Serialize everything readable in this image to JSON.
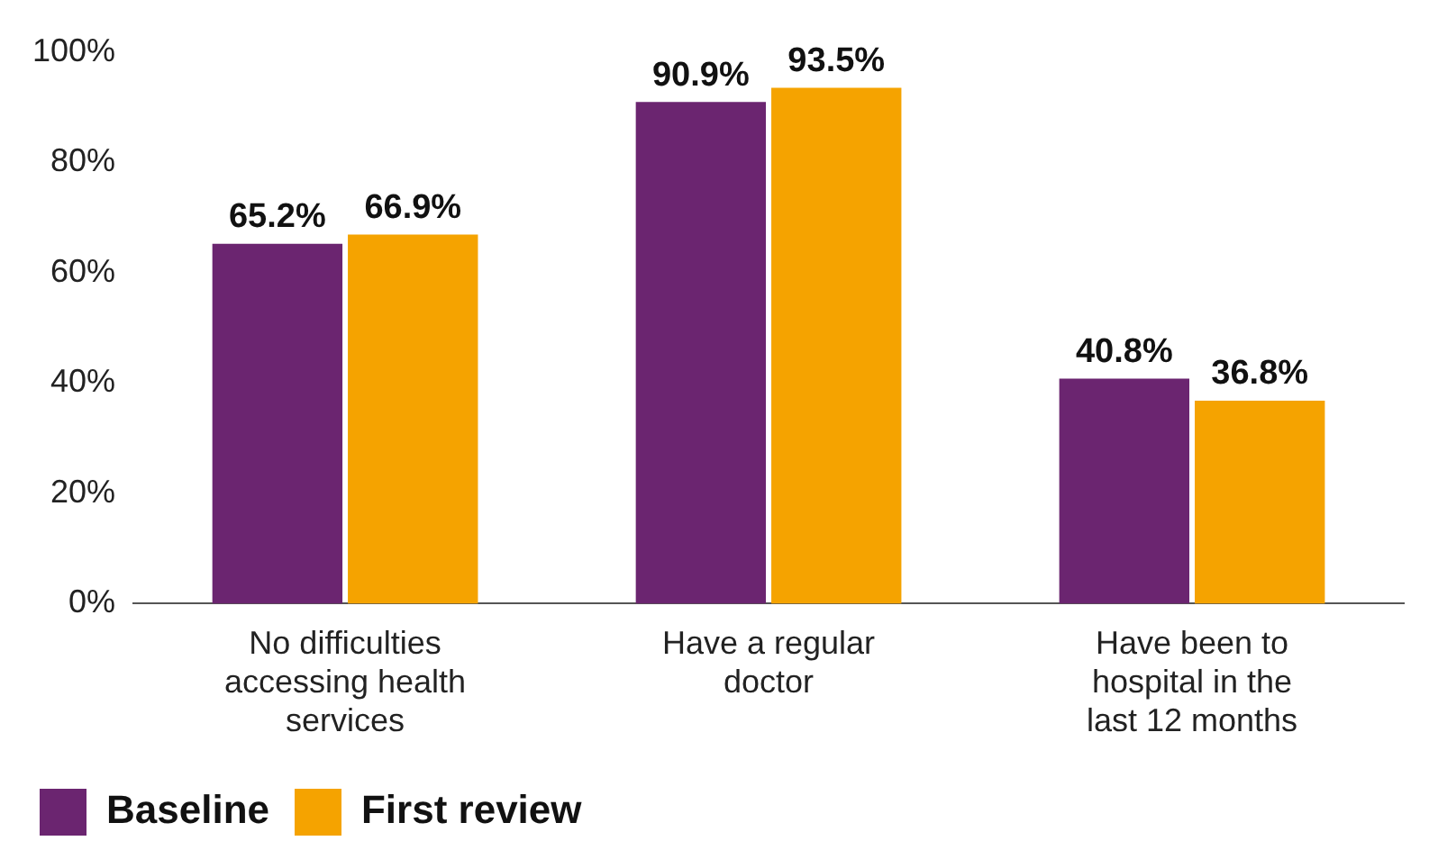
{
  "chart_data": {
    "type": "bar",
    "categories": [
      "No difficulties accessing health services",
      "Have a regular doctor",
      "Have been to hospital in the last 12 months"
    ],
    "series": [
      {
        "name": "Baseline",
        "color": "#6b2570",
        "values": [
          65.2,
          90.9,
          40.8
        ],
        "value_labels": [
          "65.2%",
          "90.9%",
          "40.8%"
        ]
      },
      {
        "name": "First review",
        "color": "#f5a300",
        "values": [
          66.9,
          93.5,
          36.8
        ],
        "value_labels": [
          "66.9%",
          "93.5%",
          "36.8%"
        ]
      }
    ],
    "ylim": [
      0,
      100
    ],
    "yticks": [
      {
        "value": 0,
        "label": "0%"
      },
      {
        "value": 20,
        "label": "20%"
      },
      {
        "value": 40,
        "label": "40%"
      },
      {
        "value": 60,
        "label": "60%"
      },
      {
        "value": 80,
        "label": "80%"
      },
      {
        "value": 100,
        "label": "100%"
      }
    ],
    "grid": false,
    "legend": "bottom left"
  }
}
